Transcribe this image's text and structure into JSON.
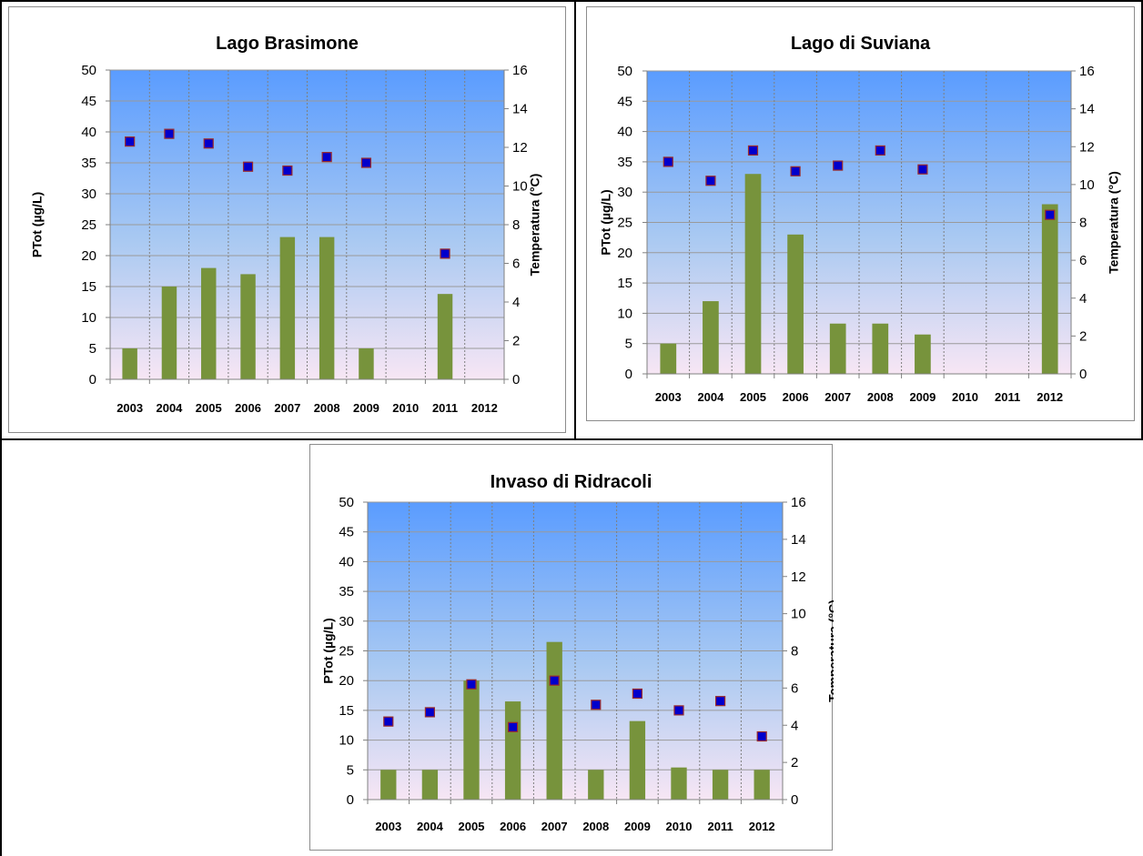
{
  "chart_data": [
    {
      "type": "bar",
      "title": "Lago Brasimone",
      "categories": [
        "2003",
        "2004",
        "2005",
        "2006",
        "2007",
        "2008",
        "2009",
        "2010",
        "2011",
        "2012"
      ],
      "series": [
        {
          "type": "bar",
          "axis": "left",
          "color": "#77933c",
          "values": [
            5,
            15,
            18,
            17,
            23,
            23,
            5,
            null,
            13.8,
            null
          ]
        },
        {
          "type": "scatter",
          "axis": "right",
          "color": "#0000cc",
          "edge": "#9b2c2c",
          "values": [
            12.3,
            12.7,
            12.2,
            11.0,
            10.8,
            11.5,
            11.2,
            null,
            6.5,
            null
          ]
        }
      ],
      "ylabel": "PTot (µg/L)",
      "y2label": "Temperatura (°C)",
      "ylim": [
        0,
        50
      ],
      "yticks": [
        0,
        5,
        10,
        15,
        20,
        25,
        30,
        35,
        40,
        45,
        50
      ],
      "y2lim": [
        0,
        16
      ],
      "y2ticks": [
        0,
        2,
        4,
        6,
        8,
        10,
        12,
        14,
        16
      ],
      "grid": true
    },
    {
      "type": "bar",
      "title": "Lago di Suviana",
      "categories": [
        "2003",
        "2004",
        "2005",
        "2006",
        "2007",
        "2008",
        "2009",
        "2010",
        "2011",
        "2012"
      ],
      "series": [
        {
          "type": "bar",
          "axis": "left",
          "color": "#77933c",
          "values": [
            5,
            12,
            33,
            23,
            8.3,
            8.3,
            6.5,
            null,
            null,
            28
          ]
        },
        {
          "type": "scatter",
          "axis": "right",
          "color": "#0000cc",
          "edge": "#9b2c2c",
          "values": [
            11.2,
            10.2,
            11.8,
            10.7,
            11.0,
            11.8,
            10.8,
            null,
            null,
            8.4
          ]
        }
      ],
      "ylabel": "PTot (µg/L)",
      "y2label": "Temperatura (°C)",
      "ylim": [
        0,
        50
      ],
      "yticks": [
        0,
        5,
        10,
        15,
        20,
        25,
        30,
        35,
        40,
        45,
        50
      ],
      "y2lim": [
        0,
        16
      ],
      "y2ticks": [
        0,
        2,
        4,
        6,
        8,
        10,
        12,
        14,
        16
      ],
      "grid": true
    },
    {
      "type": "bar",
      "title": "Invaso di Ridracoli",
      "categories": [
        "2003",
        "2004",
        "2005",
        "2006",
        "2007",
        "2008",
        "2009",
        "2010",
        "2011",
        "2012"
      ],
      "series": [
        {
          "type": "bar",
          "axis": "left",
          "color": "#77933c",
          "values": [
            5,
            5,
            20,
            16.5,
            26.5,
            5,
            13.2,
            5.4,
            5,
            5
          ]
        },
        {
          "type": "scatter",
          "axis": "right",
          "color": "#0000cc",
          "edge": "#9b2c2c",
          "values": [
            4.2,
            4.7,
            6.2,
            3.9,
            6.4,
            5.1,
            5.7,
            4.8,
            5.3,
            3.4
          ]
        }
      ],
      "ylabel": "PTot (µg/L)",
      "y2label": "Temperatura (°C)",
      "ylim": [
        0,
        50
      ],
      "yticks": [
        0,
        5,
        10,
        15,
        20,
        25,
        30,
        35,
        40,
        45,
        50
      ],
      "y2lim": [
        0,
        16
      ],
      "y2ticks": [
        0,
        2,
        4,
        6,
        8,
        10,
        12,
        14,
        16
      ],
      "grid": true
    }
  ]
}
